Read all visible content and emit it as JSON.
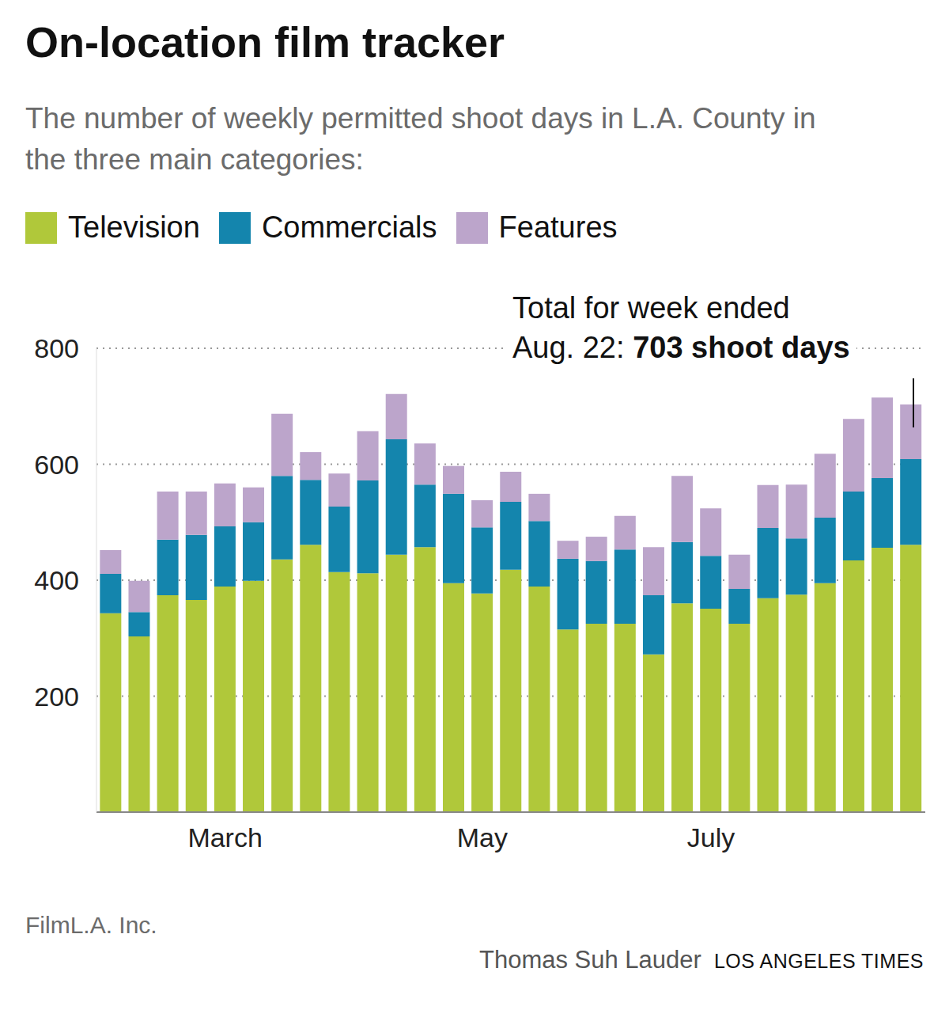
{
  "chart_data": {
    "type": "bar",
    "title": "On-location film tracker",
    "subtitle": "The number of weekly permitted shoot days in L.A. County in the three main categories:",
    "annotation": {
      "line1": "Total for week ended",
      "line2_prefix": "Aug. 22:",
      "line2_bold": "703 shoot days"
    },
    "source": "FilmL.A. Inc.",
    "credit": "Thomas Suh Lauder",
    "publisher": "LOS ANGELES TIMES",
    "categories": [
      null,
      null,
      null,
      null,
      "March",
      null,
      null,
      null,
      null,
      null,
      null,
      null,
      null,
      "May",
      null,
      null,
      null,
      null,
      null,
      null,
      null,
      "July",
      null,
      null,
      null,
      null,
      null,
      null,
      null
    ],
    "series": [
      {
        "name": "Television",
        "color": "#b0c83a",
        "values": [
          343,
          303,
          374,
          366,
          389,
          399,
          436,
          461,
          414,
          412,
          444,
          457,
          395,
          377,
          418,
          389,
          315,
          325,
          325,
          272,
          360,
          351,
          325,
          369,
          375,
          395,
          434,
          456,
          461
        ]
      },
      {
        "name": "Commercials",
        "color": "#1485ad",
        "values": [
          68,
          42,
          96,
          112,
          104,
          101,
          144,
          112,
          113,
          160,
          199,
          108,
          154,
          114,
          117,
          113,
          122,
          108,
          128,
          102,
          106,
          91,
          60,
          121,
          97,
          113,
          119,
          120,
          148
        ]
      },
      {
        "name": "Features",
        "color": "#bca5cb",
        "values": [
          41,
          54,
          83,
          75,
          74,
          60,
          107,
          48,
          57,
          85,
          78,
          71,
          48,
          47,
          52,
          47,
          31,
          42,
          58,
          83,
          114,
          82,
          59,
          74,
          93,
          110,
          125,
          139,
          94
        ]
      }
    ],
    "ylim": [
      0,
      800
    ],
    "yticks": [
      200,
      400,
      600,
      800
    ],
    "grid": true,
    "stacked": true
  }
}
